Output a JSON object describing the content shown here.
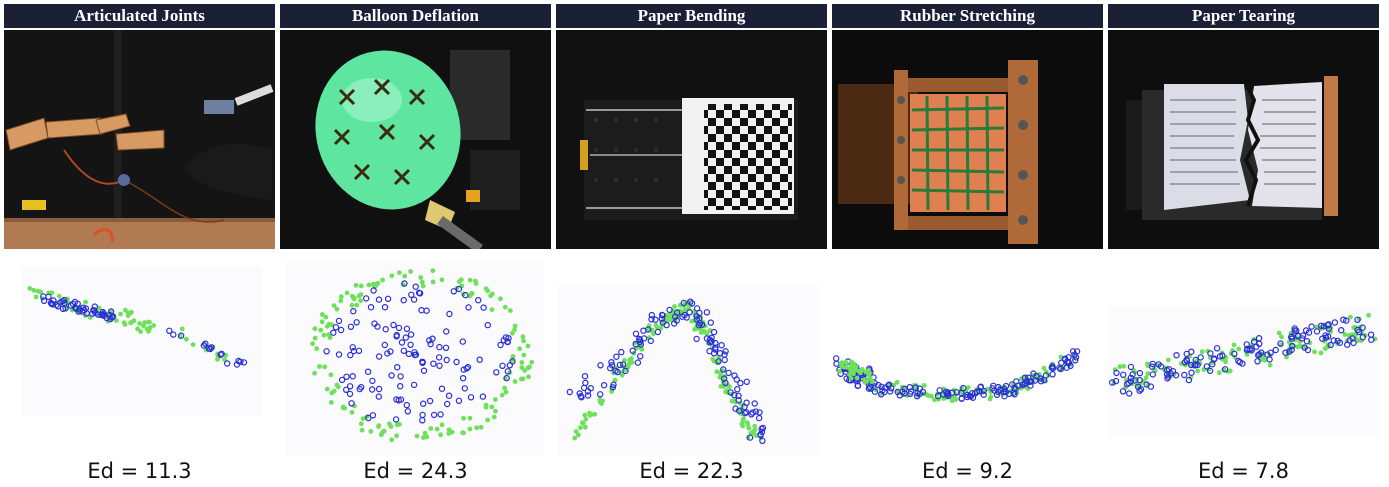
{
  "figure": {
    "panels": [
      {
        "title": "Articulated Joints",
        "metric": "Ed = 11.3",
        "photo": "articulated-joints-photo"
      },
      {
        "title": "Balloon Deflation",
        "metric": "Ed = 24.3",
        "photo": "balloon-deflation-photo"
      },
      {
        "title": "Paper Bending",
        "metric": "Ed = 22.3",
        "photo": "paper-bending-photo"
      },
      {
        "title": "Rubber Stretching",
        "metric": "Ed = 9.2",
        "photo": "rubber-stretching-photo"
      },
      {
        "title": "Paper Tearing",
        "metric": "Ed = 7.8",
        "photo": "paper-tearing-photo"
      }
    ],
    "colors": {
      "ground_truth_points": "#6ee05a",
      "predicted_points": "#2a2fd6",
      "title_bar": "#1b2036"
    }
  }
}
